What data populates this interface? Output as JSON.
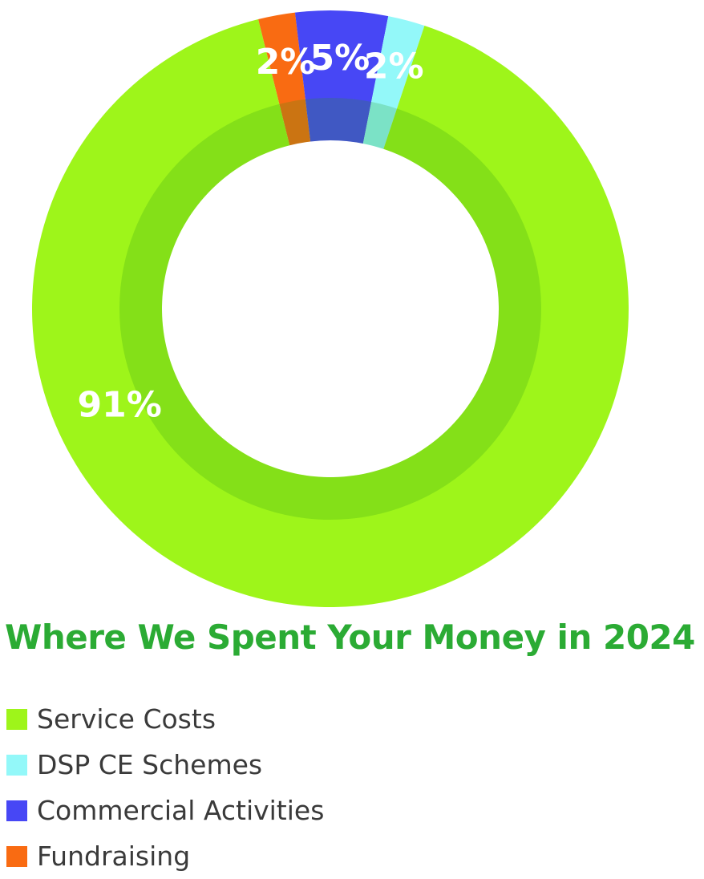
{
  "chart_data": {
    "type": "pie",
    "variant": "donut",
    "title": "Where We Spent Your Money in 2024",
    "title_color": "#2bab34",
    "slices": [
      {
        "name": "Service Costs",
        "value": 91,
        "label": "91%",
        "color": "#9ef51a"
      },
      {
        "name": "DSP CE Schemes",
        "value": 2,
        "label": "2%",
        "color": "#93f8f9"
      },
      {
        "name": "Commercial Activities",
        "value": 5,
        "label": "5%",
        "color": "#4747f5"
      },
      {
        "name": "Fundraising",
        "value": 2,
        "label": "2%",
        "color": "#f96b12"
      }
    ],
    "legend_position": "bottom-left"
  }
}
